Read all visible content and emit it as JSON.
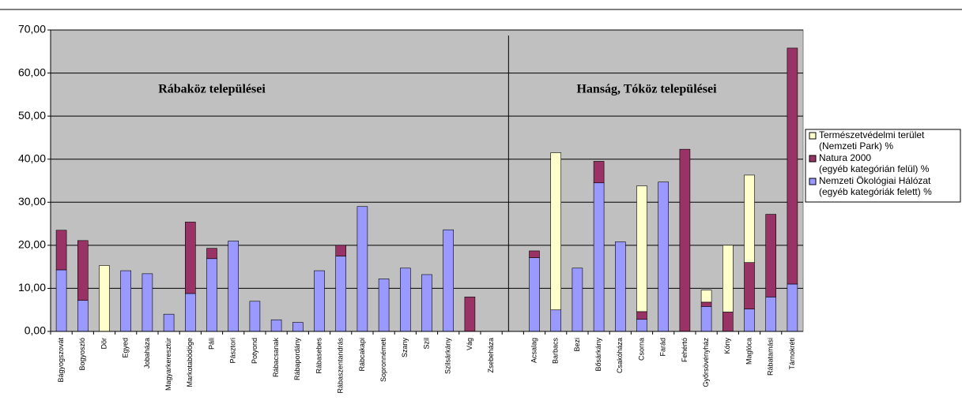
{
  "chart_data": {
    "type": "stacked_bar",
    "annotations": [
      "Rábaköz települései",
      "Hanság, Tóköz települései"
    ],
    "categories": [
      "Bágyogszovát",
      "Bogyoszló",
      "Dör",
      "Egyed",
      "Jobaháza",
      "Magyarkeresztúr",
      "Markotabödöge",
      "Páli",
      "Pásztori",
      "Potyond",
      "Rábacsanak",
      "Rábapordány",
      "Rábasebes",
      "Rábaszentandrás",
      "Rábcakapi",
      "Sopronnémeti",
      "Szany",
      "Szil",
      "Szilsárkány",
      "Vág",
      "Zsebeháza",
      null,
      "Acsalag",
      "Barbacs",
      "Bezi",
      "Bősárkány",
      "Csakóháza",
      "Csorna",
      "Farád",
      "Fehértó",
      "Győrsövényház",
      "Kóny",
      "Maglóca",
      "Rábatamási",
      "Tárnokréti"
    ],
    "series": [
      {
        "name": "Nemzeti Ökológiai Hálózat (egyéb kategóriák felett) %",
        "color": "#9999ff",
        "values": [
          14.3,
          7.2,
          0,
          14.1,
          13.4,
          4.0,
          8.8,
          16.9,
          21.0,
          7.0,
          2.7,
          2.1,
          14.1,
          17.5,
          29.0,
          12.2,
          14.7,
          13.2,
          23.6,
          0,
          0,
          null,
          17.1,
          5.0,
          14.7,
          34.5,
          20.8,
          2.8,
          34.7,
          0,
          5.8,
          0,
          5.2,
          8.0,
          11.0
        ]
      },
      {
        "name": "Natura 2000 (egyéb kategórián felül) %",
        "color": "#993366",
        "values": [
          9.2,
          13.9,
          0,
          0,
          0,
          0,
          16.6,
          2.4,
          0,
          0,
          0,
          0,
          0,
          2.5,
          0,
          0,
          0,
          0,
          0,
          8.0,
          0,
          null,
          1.6,
          0,
          0,
          5.0,
          0,
          1.8,
          0,
          42.3,
          1.0,
          4.5,
          10.8,
          19.2,
          54.8
        ]
      },
      {
        "name": "Természetvédelmi terület (Nemzeti Park) %",
        "color": "#ffffcc",
        "values": [
          0,
          0,
          15.3,
          0,
          0,
          0,
          0,
          0,
          0,
          0,
          0,
          0,
          0,
          0,
          0,
          0,
          0,
          0,
          0,
          0,
          0,
          null,
          0,
          36.5,
          0,
          0,
          0,
          29.2,
          0,
          0,
          2.8,
          15.5,
          20.3,
          0,
          0
        ]
      }
    ],
    "ylim": [
      0,
      70
    ],
    "yticks": [
      {
        "value": 0,
        "label": "0,00"
      },
      {
        "value": 10,
        "label": "10,00"
      },
      {
        "value": 20,
        "label": "20,00"
      },
      {
        "value": 30,
        "label": "30,00"
      },
      {
        "value": 40,
        "label": "40,00"
      },
      {
        "value": 50,
        "label": "50,00"
      },
      {
        "value": 60,
        "label": "60,00"
      },
      {
        "value": 70,
        "label": "70,00"
      }
    ],
    "grid": true,
    "legend": "right"
  }
}
